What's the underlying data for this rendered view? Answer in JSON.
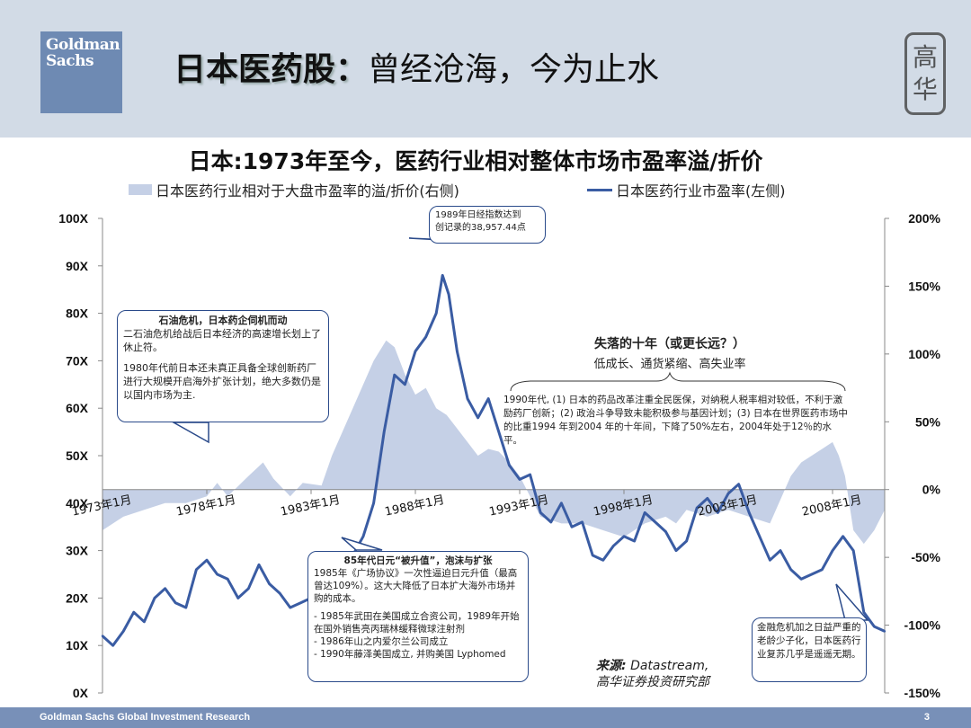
{
  "slide": {
    "title_bold": "日本医药股：",
    "title_rest": "曾经沧海，今为止水",
    "logo_line1": "Goldman",
    "logo_line2": "Sachs",
    "seal_chars": [
      "高",
      "华"
    ]
  },
  "chart_data": {
    "type": "area+line",
    "title": "日本:1973年至今，医药行业相对整体市场市盈率溢/折价",
    "legend": [
      {
        "name": "日本医药行业相对于大盘市盈率的溢/折价(右侧)",
        "kind": "area",
        "color": "#c5d0e6"
      },
      {
        "name": "日本医药行业市盈率(左侧)",
        "kind": "line",
        "color": "#3a5ca3"
      }
    ],
    "left_axis": {
      "ticks": [
        "0X",
        "10X",
        "20X",
        "30X",
        "40X",
        "50X",
        "60X",
        "70X",
        "80X",
        "90X",
        "100X"
      ],
      "range": [
        0,
        100
      ]
    },
    "right_axis": {
      "ticks": [
        "-150%",
        "-100%",
        "-50%",
        "0%",
        "50%",
        "100%",
        "150%",
        "200%"
      ],
      "range": [
        -150,
        200
      ]
    },
    "x_range": [
      1973.0,
      2010.5
    ],
    "x_tick_labels": [
      "1973年1月",
      "1978年1月",
      "1983年1月",
      "1988年1月",
      "1993年1月",
      "1998年1月",
      "2003年1月",
      "2008年1月"
    ],
    "x_tick_years": [
      1973,
      1978,
      1983,
      1988,
      1993,
      1998,
      2003,
      2008
    ],
    "pe_series": {
      "x": [
        1973.0,
        1973.5,
        1974.0,
        1974.5,
        1975.0,
        1975.5,
        1976.0,
        1976.5,
        1977.0,
        1977.5,
        1978.0,
        1978.5,
        1979.0,
        1979.5,
        1980.0,
        1980.5,
        1981.0,
        1981.5,
        1982.0,
        1982.5,
        1983.0,
        1983.5,
        1984.0,
        1984.5,
        1985.0,
        1985.5,
        1986.0,
        1986.5,
        1987.0,
        1987.5,
        1988.0,
        1988.5,
        1989.0,
        1989.3,
        1989.6,
        1990.0,
        1990.5,
        1991.0,
        1991.5,
        1992.0,
        1992.5,
        1993.0,
        1993.5,
        1994.0,
        1994.5,
        1995.0,
        1995.5,
        1996.0,
        1996.5,
        1997.0,
        1997.5,
        1998.0,
        1998.5,
        1999.0,
        1999.5,
        2000.0,
        2000.5,
        2001.0,
        2001.5,
        2002.0,
        2002.5,
        2003.0,
        2003.5,
        2004.0,
        2004.5,
        2005.0,
        2005.5,
        2006.0,
        2006.5,
        2007.0,
        2007.5,
        2008.0,
        2008.5,
        2009.0,
        2009.5,
        2010.0,
        2010.5
      ],
      "y": [
        12,
        10,
        13,
        17,
        15,
        20,
        22,
        19,
        18,
        26,
        28,
        25,
        24,
        20,
        22,
        27,
        23,
        21,
        18,
        19,
        20,
        22,
        24,
        27,
        29,
        33,
        40,
        55,
        67,
        65,
        72,
        75,
        80,
        88,
        84,
        72,
        62,
        58,
        62,
        55,
        48,
        45,
        46,
        38,
        36,
        40,
        35,
        36,
        29,
        28,
        31,
        33,
        32,
        38,
        36,
        34,
        30,
        32,
        39,
        41,
        38,
        42,
        44,
        38,
        33,
        28,
        30,
        26,
        24,
        25,
        26,
        30,
        33,
        30,
        17,
        14,
        13
      ]
    },
    "premium_series": {
      "x": [
        1973.0,
        1974.0,
        1975.0,
        1976.0,
        1977.0,
        1978.0,
        1978.5,
        1979.0,
        1980.0,
        1980.7,
        1981.2,
        1982.0,
        1982.6,
        1983.5,
        1984.0,
        1985.0,
        1986.0,
        1986.6,
        1987.0,
        1987.5,
        1988.0,
        1988.5,
        1989.0,
        1989.5,
        1990.0,
        1990.5,
        1991.0,
        1991.5,
        1992.0,
        1992.5,
        1993.0,
        1993.5,
        1994.0,
        1995.0,
        1996.0,
        1997.0,
        1998.0,
        1999.0,
        2000.0,
        2000.5,
        2001.0,
        2002.0,
        2003.0,
        2004.0,
        2005.0,
        2006.0,
        2006.5,
        2007.0,
        2007.5,
        2008.0,
        2008.3,
        2008.6,
        2009.0,
        2009.5,
        2010.0,
        2010.5
      ],
      "y": [
        -30,
        -20,
        -15,
        -10,
        -10,
        -5,
        5,
        -5,
        10,
        20,
        8,
        -5,
        5,
        3,
        25,
        60,
        95,
        110,
        105,
        85,
        70,
        75,
        60,
        55,
        45,
        35,
        25,
        30,
        28,
        20,
        10,
        -5,
        -20,
        -25,
        -25,
        -30,
        -35,
        -25,
        -20,
        -25,
        -15,
        -20,
        -15,
        -20,
        -25,
        10,
        20,
        25,
        30,
        35,
        25,
        10,
        -30,
        -40,
        -30,
        -15
      ]
    },
    "annotations": {
      "peak": "1989年日经指数达到\n创记录的38,957.44点",
      "oil_title": "石油危机，日本药企伺机而动",
      "oil_p1": "二石油危机给战后日本经济的高速增长划上了休止符。",
      "oil_p2": "1980年代前日本还未真正具备全球创新药厂进行大规模开启海外扩张计划，绝大多数仍是以国内市场为主.",
      "lost_title": "失落的十年（或更长远？）",
      "lost_sub": "低成长、通货紧缩、高失业率",
      "nineties": "1990年代, (1) 日本的药品改革注重全民医保，对纳税人税率相对较低，不利于激励药厂创新；(2) 政治斗争导致未能积极参与基因计划；(3) 日本在世界医药市场中的比重1994 年到2004 年的十年间，下降了50%左右，2004年处于12％的水平。",
      "yen_title": "85年代日元“被升值”，泡沫与扩张",
      "yen_p1": "1985年《广场协议》一次性逼迫日元升值（最高曾达109%）。这大大降低了日本扩大海外市场并购的成本。",
      "yen_b1": "- 1985年武田在美国成立合资公司，1989年开始在国外销售亮丙瑞林缓释微球注射剂",
      "yen_b2": "- 1986年山之内爱尔兰公司成立",
      "yen_b3": "- 1990年藤泽美国成立, 并购美国 Lyphomed",
      "crisis": "金融危机加之日益严重的老龄少子化，日本医药行业复苏几乎是遥遥无期。"
    }
  },
  "source": {
    "label": "来源:",
    "text": "Datastream,",
    "line2": "高华证券投资研究部"
  },
  "footer": {
    "text": "Goldman Sachs Global Investment Research",
    "page": "3"
  }
}
